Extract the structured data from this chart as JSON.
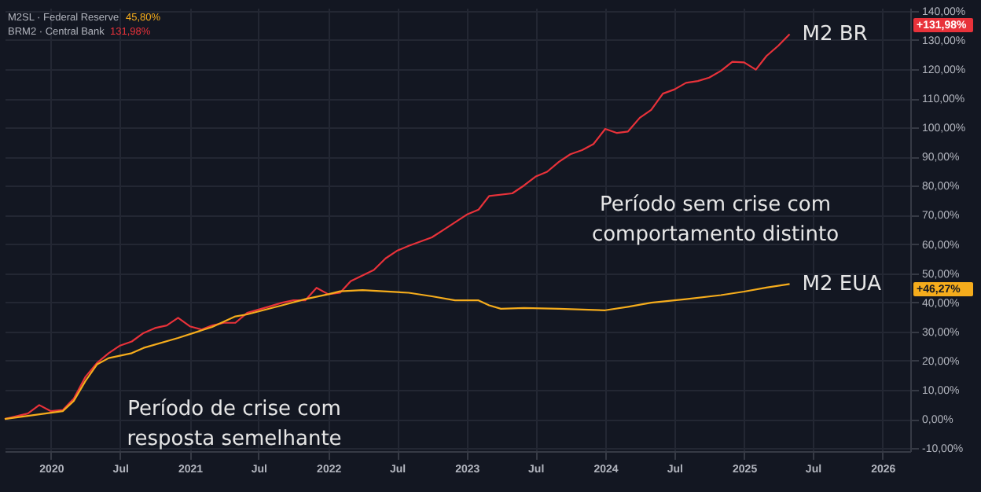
{
  "chart_data": {
    "type": "line",
    "x": [
      "2019-09",
      "2019-11",
      "2019-12",
      "2020-01",
      "2020-02",
      "2020-03",
      "2020-04",
      "2020-05",
      "2020-06",
      "2020-07",
      "2020-08",
      "2020-09",
      "2020-10",
      "2020-11",
      "2020-12",
      "2021-01",
      "2021-02",
      "2021-03",
      "2021-04",
      "2021-05",
      "2021-06",
      "2021-08",
      "2021-09",
      "2021-10",
      "2021-11",
      "2021-12",
      "2022-01",
      "2022-02",
      "2022-03",
      "2022-05",
      "2022-06",
      "2022-07",
      "2022-08",
      "2022-10",
      "2022-11",
      "2023-01",
      "2023-02",
      "2023-03",
      "2023-05",
      "2023-06",
      "2023-07",
      "2023-08",
      "2023-09",
      "2023-10",
      "2023-11",
      "2023-12",
      "2024-01",
      "2024-02",
      "2024-03",
      "2024-04",
      "2024-05",
      "2024-06",
      "2024-07",
      "2024-08",
      "2024-09",
      "2024-10",
      "2024-11",
      "2024-12",
      "2025-01",
      "2025-02",
      "2025-03",
      "2025-04",
      "2025-05"
    ],
    "series": [
      {
        "name": "M2 BR",
        "color": "#e8323a",
        "values": [
          0,
          1.9,
          4.8,
          2.7,
          3.1,
          7,
          14.5,
          19.2,
          22.6,
          25.2,
          26.6,
          29.5,
          31.2,
          32.1,
          34.7,
          31.8,
          30.7,
          32.1,
          33,
          33,
          36.4,
          38.7,
          39.9,
          40.7,
          40.7,
          45,
          42.8,
          43.3,
          47.3,
          51.1,
          55.1,
          57.7,
          59.4,
          62.3,
          64.9,
          70.1,
          71.8,
          76.5,
          77.4,
          80.1,
          83.1,
          84.8,
          88.2,
          90.8,
          92.2,
          94.3,
          99.5,
          98.1,
          98.6,
          103.3,
          106,
          111.6,
          113,
          115.3,
          115.9,
          117.1,
          119.4,
          122.5,
          122.3,
          119.8,
          124.5,
          128,
          132
        ]
      },
      {
        "name": "M2 EUA",
        "color": "#f5ac1c",
        "x": [
          "2019-09",
          "2020-02",
          "2020-03",
          "2020-04",
          "2020-05",
          "2020-06",
          "2020-08",
          "2020-09",
          "2020-12",
          "2021-03",
          "2021-05",
          "2021-06",
          "2021-09",
          "2021-11",
          "2022-01",
          "2022-02",
          "2022-04",
          "2022-08",
          "2022-10",
          "2022-12",
          "2023-02",
          "2023-03",
          "2023-04",
          "2023-06",
          "2023-09",
          "2024-01",
          "2024-03",
          "2024-05",
          "2024-08",
          "2024-11",
          "2025-01",
          "2025-03",
          "2025-05"
        ],
        "values": [
          0,
          2.7,
          6.2,
          13.1,
          18.7,
          20.9,
          22.6,
          24.4,
          27.8,
          31.6,
          35.2,
          35.9,
          39,
          41.1,
          42.8,
          43.8,
          44.2,
          43.3,
          42.1,
          40.7,
          40.7,
          39,
          37.8,
          38.1,
          37.8,
          37.3,
          38.5,
          39.9,
          41.1,
          42.5,
          43.7,
          45.1,
          46.3
        ]
      }
    ],
    "xlim": [
      "2019-09",
      "2026-03-15"
    ],
    "xticks": [
      {
        "value": "2020",
        "label": "2020"
      },
      {
        "value": "2020-07",
        "label": "Jul"
      },
      {
        "value": "2021",
        "label": "2021"
      },
      {
        "value": "2021-07",
        "label": "Jul"
      },
      {
        "value": "2022",
        "label": "2022"
      },
      {
        "value": "2022-07",
        "label": "Jul"
      },
      {
        "value": "2023",
        "label": "2023"
      },
      {
        "value": "2023-07",
        "label": "Jul"
      },
      {
        "value": "2024",
        "label": "2024"
      },
      {
        "value": "2024-07",
        "label": "Jul"
      },
      {
        "value": "2025",
        "label": "2025"
      },
      {
        "value": "2025-07",
        "label": "Jul"
      },
      {
        "value": "2026",
        "label": "2026"
      }
    ],
    "ylim": [
      -11,
      141
    ],
    "yticks": [
      {
        "value": -10,
        "label": "-10,00%"
      },
      {
        "value": 0,
        "label": "0,00%"
      },
      {
        "value": 10,
        "label": "10,00%"
      },
      {
        "value": 20,
        "label": "20,00%"
      },
      {
        "value": 30,
        "label": "30,00%"
      },
      {
        "value": 40,
        "label": "40,00%"
      },
      {
        "value": 50,
        "label": "50,00%"
      },
      {
        "value": 60,
        "label": "60,00%"
      },
      {
        "value": 70,
        "label": "70,00%"
      },
      {
        "value": 80,
        "label": "80,00%"
      },
      {
        "value": 90,
        "label": "90,00%"
      },
      {
        "value": 100,
        "label": "100,00%"
      },
      {
        "value": 110,
        "label": "110,00%"
      },
      {
        "value": 120,
        "label": "120,00%"
      },
      {
        "value": 130,
        "label": "130,00%"
      },
      {
        "value": 140,
        "label": "140,00%"
      }
    ],
    "grid": true,
    "legend": "right",
    "marker": "none",
    "line_style": "solid",
    "annotations": [
      "M2SL · Federal Reserve",
      "45,80%",
      "BRM2 · Central Bank",
      "131,98%",
      "+131,98%",
      "+46,27%",
      "Período sem crise com\ncomportamento distinto",
      "Período de crise com\nresposta semelhante"
    ]
  }
}
